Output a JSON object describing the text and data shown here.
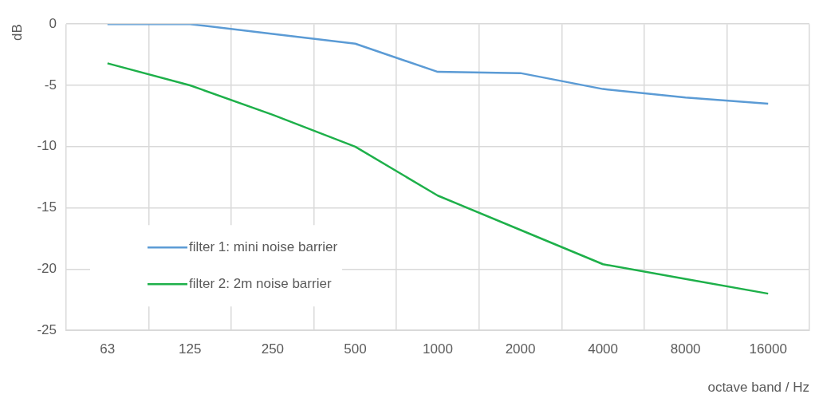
{
  "chart_data": {
    "type": "line",
    "xlabel": "octave band / Hz",
    "ylabel": "dB",
    "categories": [
      "63",
      "125",
      "250",
      "500",
      "1000",
      "2000",
      "4000",
      "8000",
      "16000"
    ],
    "series": [
      {
        "name": "filter 1: mini noise barrier",
        "color": "#5b9bd5",
        "values": [
          0,
          0,
          -0.8,
          -1.6,
          -3.9,
          -4.0,
          -5.3,
          -6.0,
          -6.5
        ]
      },
      {
        "name": "filter 2: 2m noise barrier",
        "color": "#1eb04a",
        "values": [
          -3.2,
          -5.0,
          -7.4,
          -10.0,
          -14.0,
          -16.8,
          -19.6,
          -20.8,
          -22.0
        ]
      }
    ],
    "ylim": [
      -25,
      0
    ],
    "yticks": [
      -25,
      -20,
      -15,
      -10,
      -5,
      0
    ],
    "grid": true,
    "legend": "bottom left",
    "marker": "none",
    "line_style": "solid"
  }
}
